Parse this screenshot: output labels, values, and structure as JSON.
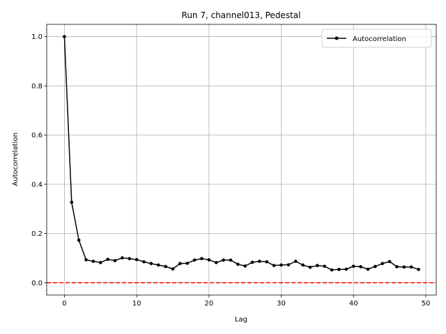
{
  "chart_data": {
    "type": "line",
    "title": "Run 7, channel013, Pedestal",
    "xlabel": "Lag",
    "ylabel": "Autocorrelation",
    "xlim": [
      -2.45,
      51.45
    ],
    "ylim": [
      -0.05,
      1.05
    ],
    "xticks": [
      0,
      10,
      20,
      30,
      40,
      50
    ],
    "yticks": [
      0.0,
      0.2,
      0.4,
      0.6,
      0.8,
      1.0
    ],
    "grid": true,
    "legend_position": "top-right",
    "series": [
      {
        "name": "Autocorrelation",
        "color": "#000000",
        "marker": "circle",
        "x": [
          0,
          1,
          2,
          3,
          4,
          5,
          6,
          7,
          8,
          9,
          10,
          11,
          12,
          13,
          14,
          15,
          16,
          17,
          18,
          19,
          20,
          21,
          22,
          23,
          24,
          25,
          26,
          27,
          28,
          29,
          30,
          31,
          32,
          33,
          34,
          35,
          36,
          37,
          38,
          39,
          40,
          41,
          42,
          43,
          44,
          45,
          46,
          47,
          48,
          49
        ],
        "values": [
          1.0,
          0.327,
          0.173,
          0.093,
          0.087,
          0.082,
          0.095,
          0.09,
          0.101,
          0.098,
          0.094,
          0.085,
          0.078,
          0.072,
          0.066,
          0.056,
          0.078,
          0.079,
          0.092,
          0.098,
          0.093,
          0.082,
          0.092,
          0.092,
          0.075,
          0.068,
          0.083,
          0.087,
          0.085,
          0.07,
          0.072,
          0.073,
          0.087,
          0.072,
          0.063,
          0.07,
          0.067,
          0.052,
          0.054,
          0.055,
          0.067,
          0.065,
          0.055,
          0.066,
          0.078,
          0.086,
          0.065,
          0.064,
          0.064,
          0.054
        ]
      }
    ],
    "reference_line": {
      "y": 0.0,
      "color": "#ff0000",
      "style": "dashed"
    }
  }
}
